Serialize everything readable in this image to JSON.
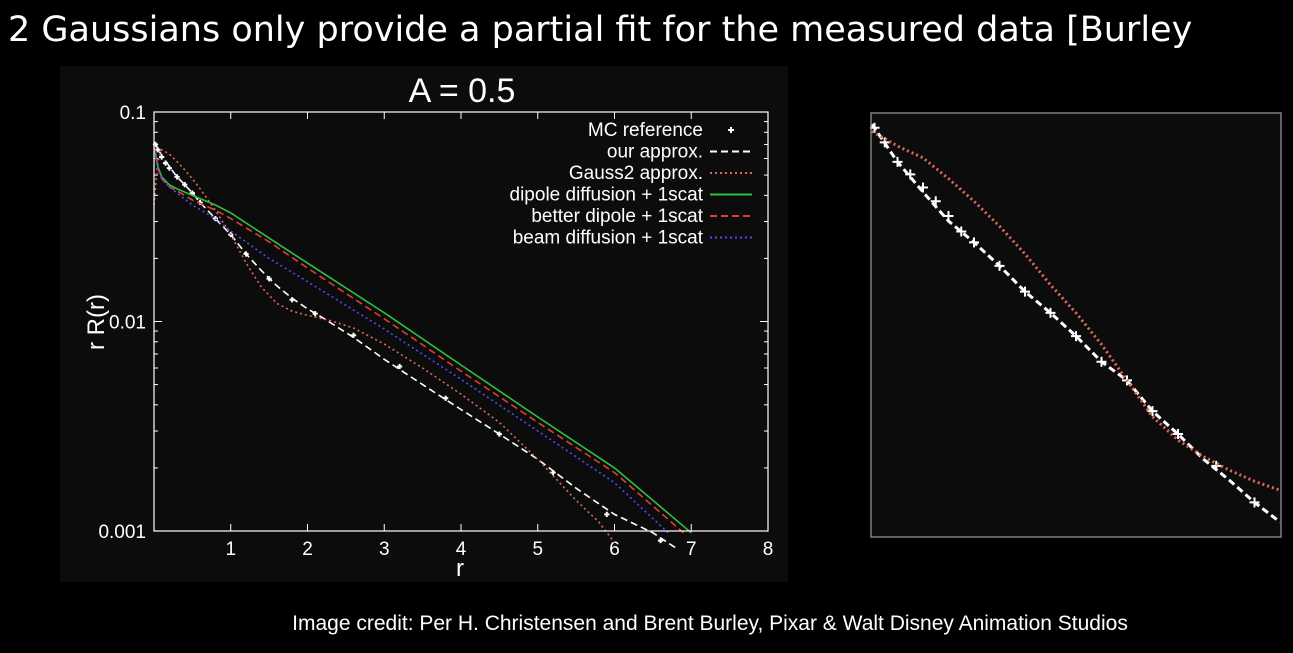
{
  "slide": {
    "title": "2 Gaussians only provide a partial fit for the measured data [Burley",
    "credit": "Image credit: Per H. Christensen and Brent Burley, Pixar & Walt Disney Animation Studios"
  },
  "colors": {
    "background": "#000000",
    "plot_background": "#0c0c0c",
    "frame": "#ffffff",
    "mc": "#ffffff",
    "ours": "#ffffff",
    "gauss2": "#e06a55",
    "dipole": "#2fbf3a",
    "better": "#e03a3a",
    "beam": "#4d4dff"
  },
  "chart_data": [
    {
      "type": "line",
      "title": "A = 0.5",
      "xlabel": "r",
      "ylabel": "r R(r)",
      "xlim": [
        0,
        8
      ],
      "ylim": [
        0.001,
        0.1
      ],
      "yscale": "log",
      "xticks": [
        "1",
        "2",
        "3",
        "4",
        "5",
        "6",
        "7",
        "8"
      ],
      "yticks": [
        "0.1",
        "0.01",
        "0.001"
      ],
      "grid": false,
      "legend_position": "top-right",
      "series": [
        {
          "name": "MC reference",
          "style": "points",
          "color": "#ffffff",
          "x": [
            0.02,
            0.05,
            0.1,
            0.15,
            0.2,
            0.3,
            0.4,
            0.5,
            0.6,
            0.8,
            1.0,
            1.2,
            1.5,
            1.8,
            2.1,
            2.6,
            3.2,
            3.8,
            4.5,
            5.2,
            5.9,
            6.6
          ],
          "y": [
            0.07,
            0.066,
            0.061,
            0.057,
            0.054,
            0.049,
            0.045,
            0.041,
            0.037,
            0.031,
            0.026,
            0.021,
            0.016,
            0.0127,
            0.0109,
            0.0086,
            0.0061,
            0.0043,
            0.0029,
            0.0019,
            0.0012,
            0.0009
          ]
        },
        {
          "name": "our approx.",
          "style": "dashed",
          "color": "#ffffff",
          "x": [
            0.0,
            0.1,
            0.2,
            0.3,
            0.4,
            0.5,
            0.6,
            0.8,
            1.0,
            1.2,
            1.4,
            1.6,
            1.8,
            2.0,
            2.2,
            2.6,
            3.0,
            3.5,
            4.0,
            4.5,
            5.0,
            5.5,
            6.0,
            6.5,
            6.8
          ],
          "y": [
            0.072,
            0.062,
            0.055,
            0.049,
            0.045,
            0.041,
            0.037,
            0.031,
            0.026,
            0.021,
            0.0175,
            0.0148,
            0.0129,
            0.0115,
            0.0104,
            0.0084,
            0.0066,
            0.005,
            0.0038,
            0.0029,
            0.0022,
            0.0016,
            0.0012,
            0.00098,
            0.00083
          ]
        },
        {
          "name": "Gauss2 approx.",
          "style": "dotted",
          "color": "#e06a55",
          "x": [
            0.0,
            0.05,
            0.1,
            0.2,
            0.3,
            0.4,
            0.5,
            0.6,
            0.8,
            1.0,
            1.2,
            1.4,
            1.6,
            1.8,
            2.0,
            2.3,
            2.6,
            3.0,
            3.5,
            4.0,
            4.5,
            5.0,
            5.5,
            5.8,
            6.0
          ],
          "y": [
            0.036,
            0.058,
            0.066,
            0.063,
            0.058,
            0.053,
            0.048,
            0.043,
            0.034,
            0.026,
            0.019,
            0.0146,
            0.0122,
            0.0112,
            0.0107,
            0.0101,
            0.0093,
            0.0078,
            0.006,
            0.0045,
            0.0033,
            0.0022,
            0.0014,
            0.0011,
            0.00088
          ]
        },
        {
          "name": "dipole diffusion + 1scat",
          "style": "solid",
          "color": "#2fbf3a",
          "x": [
            0.0,
            0.05,
            0.1,
            0.2,
            0.3,
            0.5,
            0.8,
            1.0,
            1.5,
            2.0,
            3.0,
            4.0,
            5.0,
            6.0,
            7.0
          ],
          "y": [
            0.07,
            0.055,
            0.049,
            0.045,
            0.043,
            0.04,
            0.036,
            0.033,
            0.025,
            0.019,
            0.011,
            0.0062,
            0.0035,
            0.002,
            0.00098
          ]
        },
        {
          "name": "better dipole + 1scat",
          "style": "dashed",
          "color": "#e03a3a",
          "x": [
            0.0,
            0.05,
            0.1,
            0.2,
            0.3,
            0.5,
            0.8,
            1.0,
            1.5,
            2.0,
            3.0,
            4.0,
            5.0,
            6.0,
            6.9
          ],
          "y": [
            0.069,
            0.054,
            0.048,
            0.044,
            0.042,
            0.038,
            0.034,
            0.031,
            0.024,
            0.018,
            0.0103,
            0.0058,
            0.0033,
            0.0019,
            0.00098
          ]
        },
        {
          "name": "beam diffusion + 1scat",
          "style": "dotted",
          "color": "#4d4dff",
          "x": [
            0.0,
            0.05,
            0.1,
            0.2,
            0.3,
            0.5,
            0.8,
            1.0,
            1.5,
            2.0,
            3.0,
            4.0,
            5.0,
            6.0,
            6.7
          ],
          "y": [
            0.068,
            0.054,
            0.048,
            0.044,
            0.041,
            0.036,
            0.031,
            0.027,
            0.02,
            0.0155,
            0.0092,
            0.0053,
            0.003,
            0.0017,
            0.00098
          ]
        }
      ]
    },
    {
      "type": "line",
      "title": "",
      "xlabel": "",
      "ylabel": "",
      "xlim": [
        0,
        1.6
      ],
      "ylim": [
        0.014,
        0.075
      ],
      "yscale": "log",
      "grid": false,
      "series": [
        {
          "style": "points",
          "color": "#ffffff",
          "x": [
            0.01,
            0.05,
            0.1,
            0.15,
            0.2,
            0.25,
            0.3,
            0.35,
            0.4,
            0.5,
            0.6,
            0.7,
            0.8,
            0.9,
            1.0,
            1.1,
            1.2,
            1.35,
            1.5
          ],
          "y": [
            0.071,
            0.067,
            0.062,
            0.059,
            0.056,
            0.053,
            0.05,
            0.047,
            0.045,
            0.041,
            0.037,
            0.034,
            0.031,
            0.028,
            0.026,
            0.023,
            0.021,
            0.0185,
            0.016
          ]
        },
        {
          "style": "dashed",
          "color": "#ffffff",
          "x": [
            0.0,
            0.1,
            0.2,
            0.3,
            0.4,
            0.5,
            0.6,
            0.7,
            0.8,
            0.9,
            1.0,
            1.1,
            1.2,
            1.3,
            1.4,
            1.5,
            1.6
          ],
          "y": [
            0.072,
            0.062,
            0.055,
            0.049,
            0.045,
            0.041,
            0.037,
            0.034,
            0.031,
            0.028,
            0.026,
            0.023,
            0.021,
            0.019,
            0.0175,
            0.016,
            0.0148
          ]
        },
        {
          "style": "dotted",
          "color": "#e06a55",
          "x": [
            0.0,
            0.05,
            0.1,
            0.2,
            0.3,
            0.4,
            0.5,
            0.6,
            0.7,
            0.8,
            0.9,
            1.0,
            1.1,
            1.2,
            1.3,
            1.4,
            1.5,
            1.6
          ],
          "y": [
            0.07,
            0.068,
            0.066,
            0.063,
            0.058,
            0.053,
            0.048,
            0.043,
            0.038,
            0.034,
            0.03,
            0.026,
            0.0225,
            0.0205,
            0.0192,
            0.0182,
            0.0174,
            0.0168
          ]
        }
      ]
    }
  ]
}
